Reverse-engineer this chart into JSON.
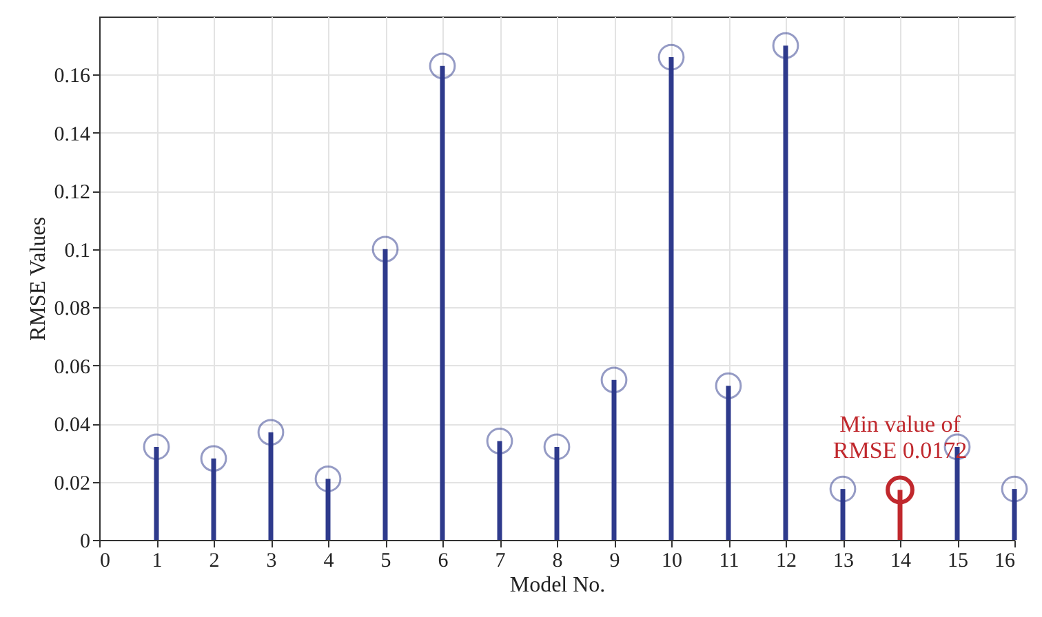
{
  "chart_data": {
    "type": "lollipop",
    "xlabel": "Model No.",
    "ylabel": "RMSE Values",
    "series": [
      {
        "color": "#2e3a8c",
        "x": [
          1,
          2,
          3,
          4,
          5,
          6,
          7,
          8,
          9,
          10,
          11,
          12,
          13,
          15,
          16
        ],
        "values": [
          0.032,
          0.028,
          0.037,
          0.021,
          0.1,
          0.163,
          0.034,
          0.032,
          0.055,
          0.166,
          0.053,
          0.17,
          0.0175,
          0.032,
          0.0175
        ]
      },
      {
        "color": "#c0282d",
        "x": [
          14
        ],
        "values": [
          0.0172
        ]
      }
    ],
    "xlim": [
      0,
      16
    ],
    "xticks": [
      0,
      1,
      2,
      3,
      4,
      5,
      6,
      7,
      8,
      9,
      10,
      11,
      12,
      13,
      14,
      15,
      16
    ],
    "ylim": [
      0,
      0.18
    ],
    "yticks": [
      0,
      0.02,
      0.04,
      0.06,
      0.08,
      0.1,
      0.12,
      0.14,
      0.16
    ],
    "grid": true,
    "marker": "circle",
    "annotations": [
      {
        "text": "Min value of\nRMSE 0.0172",
        "x": 14,
        "y": 0.0172
      }
    ]
  }
}
